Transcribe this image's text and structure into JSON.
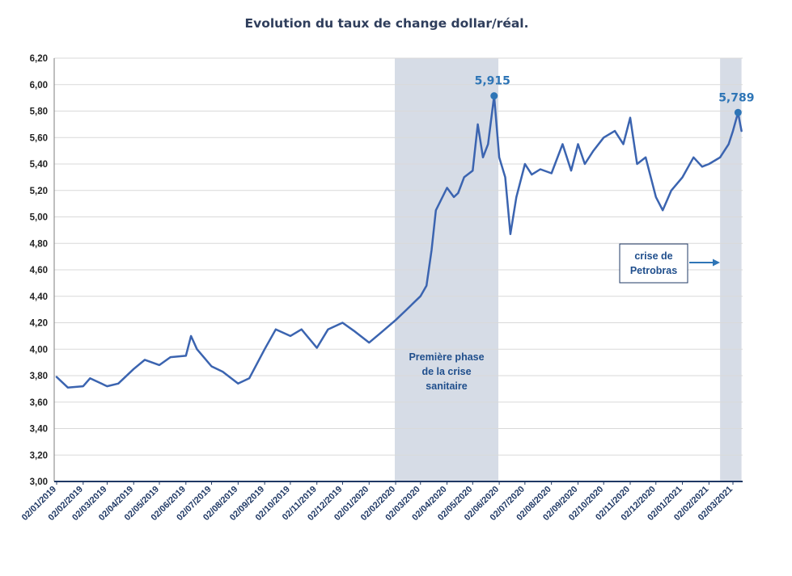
{
  "chart_data": {
    "type": "line",
    "title": "Evolution du taux de change dollar/réal.",
    "xlabel": "",
    "ylabel": "",
    "ylim": [
      3.0,
      6.2
    ],
    "yticks": [
      "6,20",
      "6,00",
      "5,80",
      "5,60",
      "5,40",
      "5,20",
      "5,00",
      "4,80",
      "4,60",
      "4,40",
      "4,20",
      "4,00",
      "3,80",
      "3,60",
      "3,40",
      "3,20",
      "3,00"
    ],
    "xticks": [
      "02/01/2019",
      "02/02/2019",
      "02/03/2019",
      "02/04/2019",
      "02/05/2019",
      "02/06/2019",
      "02/07/2019",
      "02/08/2019",
      "02/09/2019",
      "02/10/2019",
      "02/11/2019",
      "02/12/2019",
      "02/01/2020",
      "02/02/2020",
      "02/03/2020",
      "02/04/2020",
      "02/05/2020",
      "02/06/2020",
      "02/07/2020",
      "02/08/2020",
      "02/09/2020",
      "02/10/2020",
      "02/11/2020",
      "02/12/2020",
      "02/01/2021",
      "02/02/2021",
      "02/03/2021"
    ],
    "grid": true,
    "line_color": "#3b64b0",
    "shade_color": "#d6dce6",
    "series": [
      {
        "x": [
          "02/01/2019",
          "15/01/2019",
          "02/02/2019",
          "10/02/2019",
          "02/03/2019",
          "15/03/2019",
          "02/04/2019",
          "15/04/2019",
          "02/05/2019",
          "15/05/2019",
          "02/06/2019",
          "08/06/2019",
          "15/06/2019",
          "02/07/2019",
          "15/07/2019",
          "02/08/2019",
          "15/08/2019",
          "02/09/2019",
          "15/09/2019",
          "02/10/2019",
          "15/10/2019",
          "02/11/2019",
          "15/11/2019",
          "02/12/2019",
          "15/12/2019",
          "02/01/2020",
          "15/01/2020",
          "02/02/2020",
          "15/02/2020",
          "02/03/2020",
          "09/03/2020",
          "15/03/2020",
          "20/03/2020",
          "02/04/2020",
          "10/04/2020",
          "15/04/2020",
          "22/04/2020",
          "02/05/2020",
          "08/05/2020",
          "14/05/2020",
          "20/05/2020",
          "27/05/2020",
          "02/06/2020",
          "09/06/2020",
          "15/06/2020",
          "22/06/2020",
          "02/07/2020",
          "10/07/2020",
          "20/07/2020",
          "02/08/2020",
          "15/08/2020",
          "25/08/2020",
          "02/09/2020",
          "10/09/2020",
          "20/09/2020",
          "02/10/2020",
          "15/10/2020",
          "25/10/2020",
          "02/11/2020",
          "10/11/2020",
          "20/11/2020",
          "02/12/2020",
          "10/12/2020",
          "20/12/2020",
          "02/01/2021",
          "15/01/2021",
          "25/01/2021",
          "02/02/2021",
          "15/02/2021",
          "25/02/2021",
          "02/03/2021",
          "08/03/2021",
          "12/03/2021"
        ],
        "values": [
          3.79,
          3.71,
          3.72,
          3.78,
          3.72,
          3.74,
          3.85,
          3.92,
          3.88,
          3.94,
          3.95,
          4.1,
          4.0,
          3.87,
          3.83,
          3.74,
          3.78,
          4.0,
          4.15,
          4.1,
          4.15,
          4.01,
          4.15,
          4.2,
          4.14,
          4.05,
          4.12,
          4.22,
          4.3,
          4.4,
          4.48,
          4.75,
          5.05,
          5.22,
          5.15,
          5.18,
          5.3,
          5.35,
          5.7,
          5.45,
          5.55,
          5.915,
          5.45,
          5.3,
          4.87,
          5.15,
          5.4,
          5.32,
          5.36,
          5.33,
          5.55,
          5.35,
          5.55,
          5.4,
          5.5,
          5.6,
          5.65,
          5.55,
          5.75,
          5.4,
          5.45,
          5.15,
          5.05,
          5.2,
          5.3,
          5.45,
          5.38,
          5.4,
          5.45,
          5.55,
          5.65,
          5.789,
          5.65
        ]
      }
    ],
    "shaded_regions": [
      {
        "from": "01/02/2020",
        "to": "01/06/2020",
        "label_lines": [
          "Première phase",
          "de la crise",
          "sanitaire"
        ]
      },
      {
        "from": "15/02/2021",
        "to": "12/03/2021",
        "label_lines": []
      }
    ],
    "annotations": [
      {
        "text": "5,915",
        "x": "27/05/2020",
        "y": 5.915
      },
      {
        "text": "5,789",
        "x": "08/03/2021",
        "y": 5.789
      }
    ],
    "callout_box": {
      "lines": [
        "crise de",
        "Petrobras"
      ]
    }
  }
}
